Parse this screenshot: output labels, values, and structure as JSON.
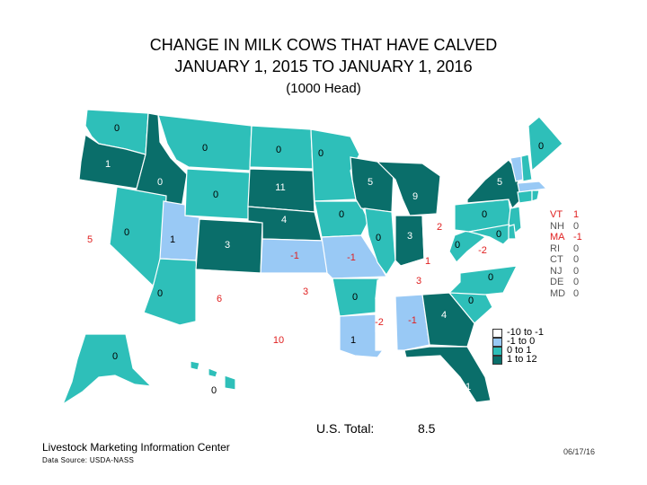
{
  "title_line1": "CHANGE IN MILK COWS THAT HAVE CALVED",
  "title_line2": "JANUARY 1, 2015 TO JANUARY 1, 2016",
  "subtitle": "(1000 Head)",
  "colors": {
    "cat_neg_large": "#ffffff",
    "cat_neg_small": "#99c9f5",
    "cat_pos_small": "#2ebfb9",
    "cat_pos_large": "#0a6e6a",
    "label_default": "#000000",
    "label_negative": "#e02020"
  },
  "legend": {
    "items": [
      {
        "label": "-10 to -1",
        "color": "#ffffff"
      },
      {
        "label": "-1 to 0",
        "color": "#99c9f5"
      },
      {
        "label": "0 to 1",
        "color": "#2ebfb9"
      },
      {
        "label": "1 to 12",
        "color": "#0a6e6a"
      }
    ]
  },
  "states": [
    {
      "name": "WA",
      "value": "0"
    },
    {
      "name": "OR",
      "value": "1"
    },
    {
      "name": "CA",
      "value": "5"
    },
    {
      "name": "ID",
      "value": "0"
    },
    {
      "name": "NV",
      "value": "0"
    },
    {
      "name": "UT",
      "value": "1"
    },
    {
      "name": "AZ",
      "value": "0"
    },
    {
      "name": "MT",
      "value": "0"
    },
    {
      "name": "WY",
      "value": "0"
    },
    {
      "name": "CO",
      "value": "3"
    },
    {
      "name": "NM",
      "value": "6"
    },
    {
      "name": "ND",
      "value": "0"
    },
    {
      "name": "SD",
      "value": "11"
    },
    {
      "name": "NE",
      "value": "4"
    },
    {
      "name": "KS",
      "value": "-1"
    },
    {
      "name": "OK",
      "value": "3"
    },
    {
      "name": "TX",
      "value": "10"
    },
    {
      "name": "MN",
      "value": "0"
    },
    {
      "name": "IA",
      "value": "0"
    },
    {
      "name": "MO",
      "value": "-1"
    },
    {
      "name": "AR",
      "value": "0"
    },
    {
      "name": "LA",
      "value": "1"
    },
    {
      "name": "WI",
      "value": "5"
    },
    {
      "name": "IL",
      "value": "0"
    },
    {
      "name": "MI",
      "value": "9"
    },
    {
      "name": "IN",
      "value": "3"
    },
    {
      "name": "OH",
      "value": "2"
    },
    {
      "name": "KY",
      "value": "1"
    },
    {
      "name": "TN",
      "value": "3"
    },
    {
      "name": "MS",
      "value": "-2"
    },
    {
      "name": "AL",
      "value": "-1"
    },
    {
      "name": "GA",
      "value": "4"
    },
    {
      "name": "FL",
      "value": "1"
    },
    {
      "name": "SC",
      "value": "0"
    },
    {
      "name": "NC",
      "value": "0"
    },
    {
      "name": "VA",
      "value": "-2"
    },
    {
      "name": "WV",
      "value": "0"
    },
    {
      "name": "PA",
      "value": "0"
    },
    {
      "name": "NY",
      "value": "5"
    },
    {
      "name": "ME",
      "value": "0"
    },
    {
      "name": "MD",
      "value": "0"
    },
    {
      "name": "AK",
      "value": "0"
    },
    {
      "name": "HI",
      "value": "0"
    }
  ],
  "northeast": [
    {
      "abbr": "VT",
      "value": "1",
      "negative": false
    },
    {
      "abbr": "NH",
      "value": "0",
      "negative": false
    },
    {
      "abbr": "MA",
      "value": "-1",
      "negative": true
    },
    {
      "abbr": "RI",
      "value": "0",
      "negative": false
    },
    {
      "abbr": "CT",
      "value": "0",
      "negative": false
    },
    {
      "abbr": "NJ",
      "value": "0",
      "negative": false
    },
    {
      "abbr": "DE",
      "value": "0",
      "negative": false
    },
    {
      "abbr": "MD",
      "value": "0",
      "negative": false
    }
  ],
  "total": {
    "label": "U.S. Total:",
    "value": "8.5"
  },
  "footer": {
    "org": "Livestock Marketing Information Center",
    "source": "Data Source: USDA-NASS",
    "date": "06/17/16"
  }
}
